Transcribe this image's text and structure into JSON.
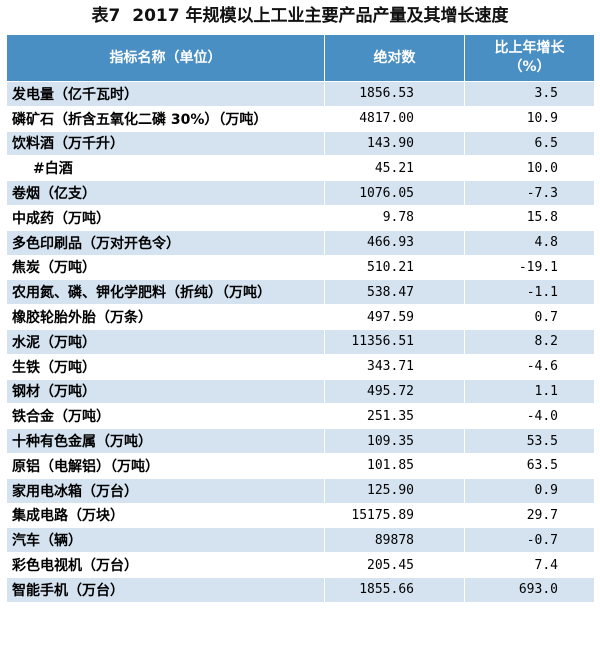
{
  "table_label": "表7",
  "title": "2017 年规模以上工业主要产品产量及其增长速度",
  "headers": {
    "name": "指标名称（单位）",
    "value": "绝对数",
    "growth_line1": "比上年增长",
    "growth_line2": "（%）"
  },
  "rows": [
    {
      "name": "发电量（亿千瓦时）",
      "value": "1856.53",
      "growth": "3.5"
    },
    {
      "name": "磷矿石（折含五氧化二磷 30%）（万吨）",
      "value": "4817.00",
      "growth": "10.9"
    },
    {
      "name": "饮料酒（万千升）",
      "value": "143.90",
      "growth": "6.5"
    },
    {
      "name": "#白酒",
      "value": "45.21",
      "growth": "10.0"
    },
    {
      "name": "卷烟（亿支）",
      "value": "1076.05",
      "growth": "-7.3"
    },
    {
      "name": "中成药（万吨）",
      "value": "9.78",
      "growth": "15.8"
    },
    {
      "name": "多色印刷品（万对开色令）",
      "value": "466.93",
      "growth": "4.8"
    },
    {
      "name": "焦炭（万吨）",
      "value": "510.21",
      "growth": "-19.1"
    },
    {
      "name": "农用氮、磷、钾化学肥料（折纯）（万吨）",
      "value": "538.47",
      "growth": "-1.1"
    },
    {
      "name": "橡胶轮胎外胎（万条）",
      "value": "497.59",
      "growth": "0.7"
    },
    {
      "name": "水泥（万吨）",
      "value": "11356.51",
      "growth": "8.2"
    },
    {
      "name": "生铁（万吨）",
      "value": "343.71",
      "growth": "-4.6"
    },
    {
      "name": "钢材（万吨）",
      "value": "495.72",
      "growth": "1.1"
    },
    {
      "name": "铁合金（万吨）",
      "value": "251.35",
      "growth": "-4.0"
    },
    {
      "name": "十种有色金属（万吨）",
      "value": "109.35",
      "growth": "53.5"
    },
    {
      "name": "原铝（电解铝）（万吨）",
      "value": "101.85",
      "growth": "63.5"
    },
    {
      "name": "家用电冰箱（万台）",
      "value": "125.90",
      "growth": "0.9"
    },
    {
      "name": "集成电路（万块）",
      "value": "15175.89",
      "growth": "29.7"
    },
    {
      "name": "汽车（辆）",
      "value": "89878",
      "growth": "-0.7"
    },
    {
      "name": "彩色电视机（万台）",
      "value": "205.45",
      "growth": "7.4"
    },
    {
      "name": "智能手机（万台）",
      "value": "1855.66",
      "growth": "693.0"
    }
  ]
}
